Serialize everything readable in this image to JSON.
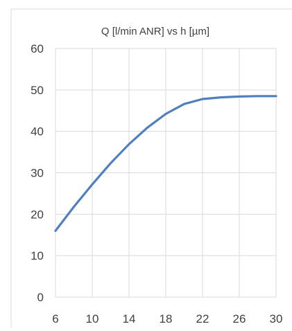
{
  "chart_data": {
    "type": "line",
    "title": "Q [l/min ANR] vs h [µm]",
    "xlabel": "",
    "ylabel": "",
    "xlim": [
      6,
      30
    ],
    "ylim": [
      0,
      60
    ],
    "x_ticks": [
      6,
      10,
      14,
      18,
      22,
      26,
      30
    ],
    "y_ticks": [
      0,
      10,
      20,
      30,
      40,
      50,
      60
    ],
    "grid": true,
    "legend": "none",
    "colors": {
      "line": "#4f7fbf",
      "grid": "#d9d9d9",
      "frame": "#d9d9d9",
      "text": "#404040"
    },
    "series": [
      {
        "x": [
          6,
          8,
          10,
          12,
          14,
          16,
          18,
          20,
          22,
          24,
          26,
          28,
          30
        ],
        "y": [
          16,
          21.8,
          27.2,
          32.3,
          36.9,
          40.9,
          44.2,
          46.6,
          47.8,
          48.2,
          48.4,
          48.5,
          48.5
        ]
      }
    ]
  }
}
